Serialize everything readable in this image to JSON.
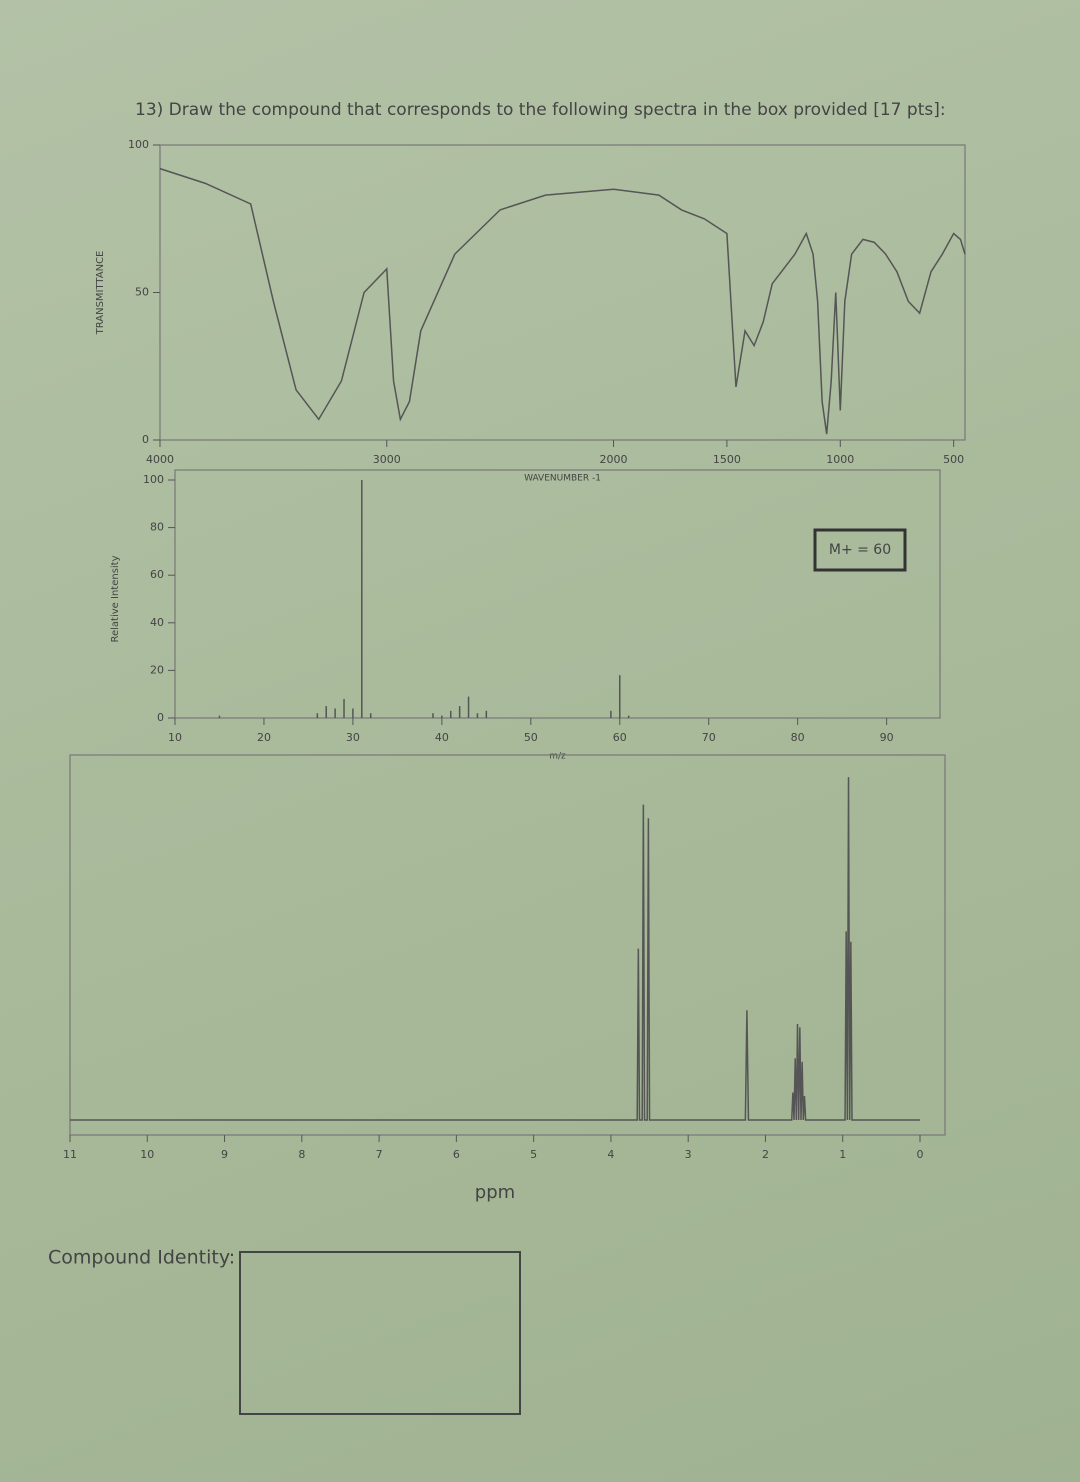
{
  "question": "13) Draw the compound that corresponds to the following spectra in the box provided [17 pts]:",
  "answer_label": "Compound Identity:",
  "chart_data": [
    {
      "type": "line",
      "xlabel": "WAVENUMBER -1",
      "ylabel": "TRANSMITTANCE",
      "color": "#555555",
      "x": [
        4000,
        3800,
        3600,
        3500,
        3400,
        3300,
        3200,
        3100,
        3000,
        2970,
        2940,
        2900,
        2850,
        2700,
        2500,
        2300,
        2000,
        1800,
        1700,
        1600,
        1500,
        1460,
        1420,
        1380,
        1340,
        1300,
        1250,
        1200,
        1150,
        1120,
        1100,
        1080,
        1060,
        1040,
        1020,
        1000,
        980,
        950,
        900,
        850,
        800,
        750,
        700,
        650,
        600,
        550,
        500,
        470,
        450
      ],
      "values": [
        92,
        87,
        80,
        47,
        17,
        7,
        20,
        50,
        58,
        20,
        7,
        13,
        37,
        63,
        78,
        83,
        85,
        83,
        78,
        75,
        70,
        18,
        37,
        32,
        40,
        53,
        58,
        63,
        70,
        63,
        47,
        13,
        2,
        20,
        50,
        10,
        47,
        63,
        68,
        67,
        63,
        57,
        47,
        43,
        57,
        63,
        70,
        68,
        63
      ],
      "xlim": [
        4000,
        450
      ],
      "xticks": [
        4000,
        3000,
        2000,
        1500,
        1000,
        500
      ],
      "ylim": [
        0,
        100
      ],
      "yticks": [
        0,
        50,
        100
      ]
    },
    {
      "type": "bar",
      "xlabel": "m/z",
      "ylabel": "Relative Intensity",
      "color": "#555555",
      "annotation": "M+ = 60",
      "x": [
        15,
        26,
        27,
        28,
        29,
        30,
        31,
        32,
        39,
        40,
        41,
        42,
        43,
        44,
        45,
        59,
        60,
        61
      ],
      "values": [
        1,
        2,
        5,
        4,
        8,
        4,
        100,
        2,
        2,
        1,
        3,
        5,
        9,
        2,
        3,
        3,
        18,
        1
      ],
      "xlim": [
        10,
        96
      ],
      "xticks": [
        10,
        20,
        30,
        40,
        50,
        60,
        70,
        80,
        90
      ],
      "ylim": [
        0,
        100
      ],
      "yticks": [
        0,
        20,
        40,
        60,
        80,
        100
      ]
    },
    {
      "type": "line",
      "xlabel": "ppm",
      "color": "#555555",
      "x": [
        11,
        3.7,
        3.66,
        3.645,
        3.63,
        3.595,
        3.58,
        3.565,
        3.53,
        3.515,
        3.5,
        2.26,
        2.24,
        2.22,
        1.66,
        1.645,
        1.63,
        1.615,
        1.6,
        1.585,
        1.57,
        1.555,
        1.54,
        1.525,
        1.51,
        1.495,
        1.48,
        0.97,
        0.955,
        0.94,
        0.925,
        0.91,
        0.895,
        0.88,
        0
      ],
      "values": [
        0,
        0,
        0,
        50,
        0,
        0,
        92,
        0,
        0,
        88,
        0,
        0,
        32,
        0,
        0,
        8,
        0,
        18,
        0,
        28,
        0,
        27,
        0,
        17,
        0,
        7,
        0,
        0,
        55,
        0,
        100,
        0,
        52,
        0,
        0
      ],
      "xlim": [
        11,
        0
      ],
      "xticks": [
        11,
        10,
        9,
        8,
        7,
        6,
        5,
        4,
        3,
        2,
        1,
        0
      ],
      "ylim": [
        0,
        105
      ]
    }
  ]
}
